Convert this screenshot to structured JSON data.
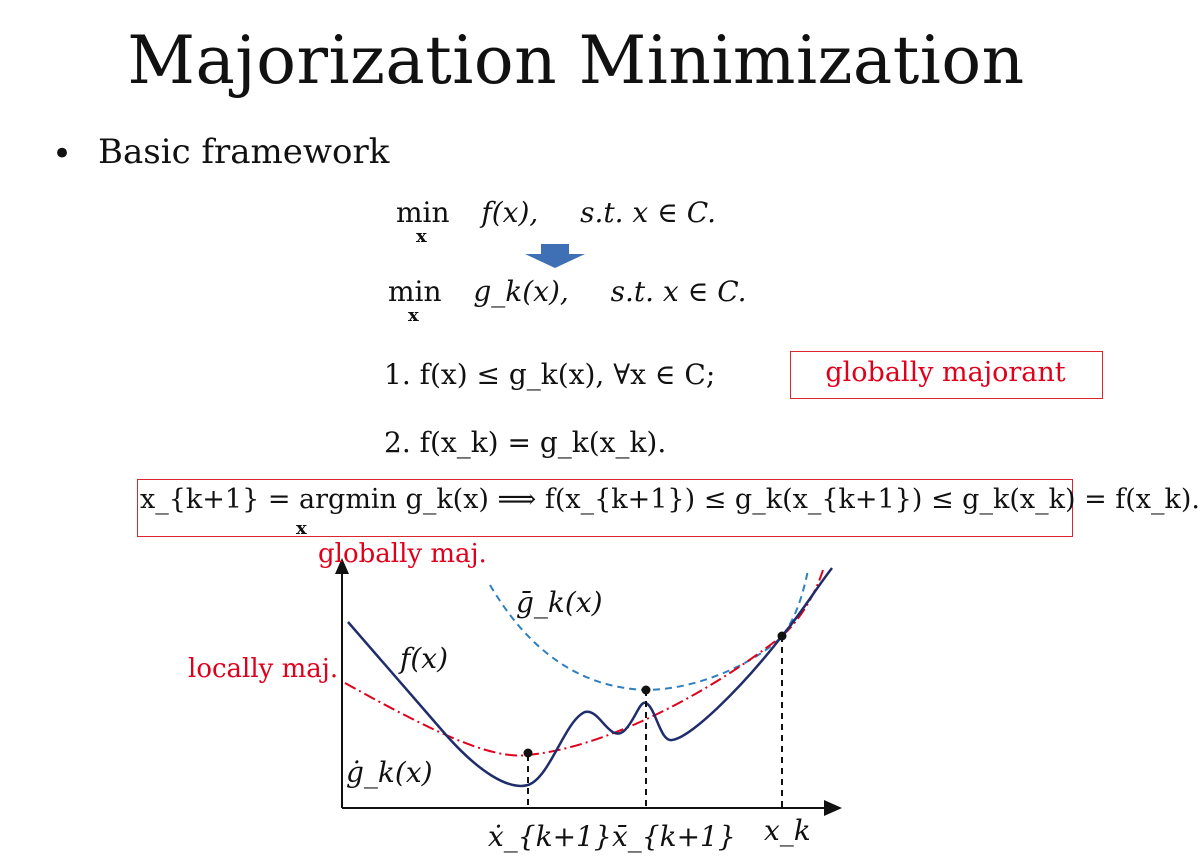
{
  "slide": {
    "title": "Majorization Minimization",
    "bullet": "Basic framework"
  },
  "equations": {
    "original": {
      "min": "min",
      "var": "x",
      "objective": "f(x),",
      "constraint": "s.t. x ∈ C."
    },
    "surrogate": {
      "min": "min",
      "var": "x",
      "objective": "g_k(x),",
      "constraint": "s.t. x ∈ C."
    },
    "condition1": "1.  f(x) ≤ g_k(x), ∀x ∈ C;",
    "condition2": "2.  f(x_k) = g_k(x_k).",
    "update": "x_{k+1} = argmin g_k(x) ⟹ f(x_{k+1}) ≤ g_k(x_{k+1}) ≤ g_k(x_k) = f(x_k).",
    "update_under": "x"
  },
  "annotations": {
    "globally_majorant": "globally majorant",
    "globally_maj": "globally maj.",
    "locally_maj": "locally maj."
  },
  "figure": {
    "labels": {
      "g_bar": "ḡ_k(x)",
      "f": "f(x)",
      "g_dot": "ġ_k(x)",
      "x_dot": "ẋ_{k+1}",
      "x_bar": "x̄_{k+1}",
      "x_k": "x_k"
    },
    "colors": {
      "f_curve": "#1f2d6b",
      "global_curve": "#2f7fc1",
      "local_curve": "#e0001b",
      "arrow": "#3f6fb5"
    }
  }
}
